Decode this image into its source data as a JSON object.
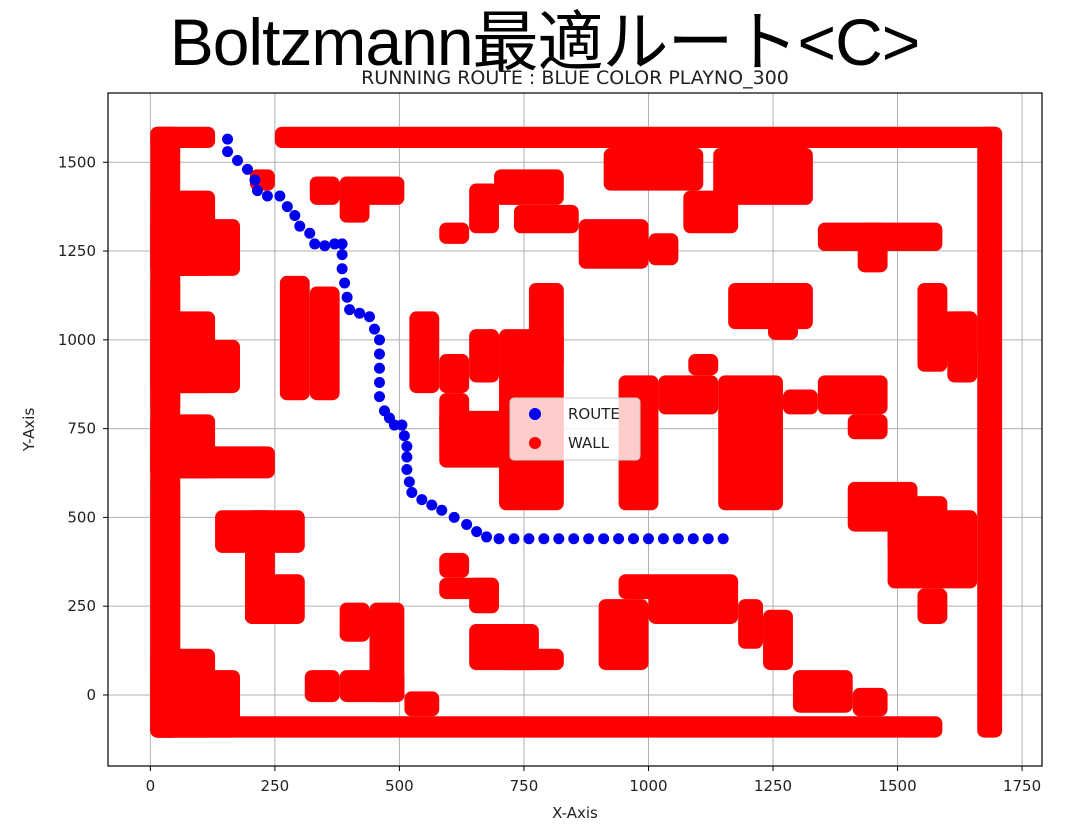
{
  "slide": {
    "title": "Boltzmann最適ルート<C>"
  },
  "chart_data": {
    "type": "scatter",
    "title": "RUNNING ROUTE : BLUE COLOR PLAYNO_300",
    "xlabel": "X-Axis",
    "ylabel": "Y-Axis",
    "xlim": [
      -85,
      1790
    ],
    "ylim": [
      -200,
      1695
    ],
    "xticks": [
      0,
      250,
      500,
      750,
      1000,
      1250,
      1500,
      1750
    ],
    "yticks": [
      0,
      250,
      500,
      750,
      1000,
      1250,
      1500
    ],
    "grid": true,
    "legend": {
      "placement": "center",
      "entries": [
        "ROUTE",
        "WALL"
      ]
    },
    "colors": {
      "route": "#0000ee",
      "wall": "#ff0000"
    },
    "cell_size": 60,
    "series": [
      {
        "name": "WALL",
        "color": "#ff0000",
        "rects": [
          [
            0,
            -120,
            60,
            1600
          ],
          [
            0,
            1540,
            130,
            1600
          ],
          [
            250,
            1540,
            1710,
            1600
          ],
          [
            1660,
            -120,
            1710,
            1600
          ],
          [
            0,
            -120,
            1590,
            -60
          ],
          [
            0,
            1180,
            130,
            1420
          ],
          [
            0,
            1180,
            180,
            1340
          ],
          [
            0,
            790,
            60,
            1180
          ],
          [
            0,
            850,
            130,
            1080
          ],
          [
            0,
            850,
            180,
            1000
          ],
          [
            0,
            610,
            60,
            790
          ],
          [
            0,
            610,
            130,
            790
          ],
          [
            0,
            610,
            250,
            700
          ],
          [
            0,
            -120,
            60,
            610
          ],
          [
            0,
            -120,
            130,
            130
          ],
          [
            0,
            -120,
            180,
            70
          ],
          [
            130,
            400,
            310,
            520
          ],
          [
            190,
            200,
            250,
            520
          ],
          [
            190,
            200,
            310,
            340
          ],
          [
            260,
            830,
            320,
            1180
          ],
          [
            320,
            830,
            380,
            1150
          ],
          [
            320,
            1380,
            380,
            1460
          ],
          [
            380,
            1380,
            510,
            1460
          ],
          [
            380,
            1330,
            440,
            1460
          ],
          [
            200,
            1420,
            250,
            1480
          ],
          [
            580,
            1270,
            640,
            1330
          ],
          [
            640,
            1300,
            700,
            1440
          ],
          [
            690,
            1380,
            830,
            1480
          ],
          [
            730,
            1300,
            860,
            1380
          ],
          [
            860,
            1200,
            1000,
            1340
          ],
          [
            1000,
            1210,
            1060,
            1300
          ],
          [
            1070,
            1300,
            1180,
            1420
          ],
          [
            1130,
            1380,
            1330,
            1540
          ],
          [
            910,
            1420,
            1110,
            1540
          ],
          [
            1160,
            1030,
            1330,
            1160
          ],
          [
            1240,
            1000,
            1300,
            1160
          ],
          [
            1420,
            1190,
            1480,
            1330
          ],
          [
            1340,
            1250,
            1590,
            1330
          ],
          [
            1540,
            910,
            1600,
            1160
          ],
          [
            1540,
            940,
            1660,
            1080
          ],
          [
            1600,
            880,
            1660,
            1080
          ],
          [
            520,
            850,
            580,
            1080
          ],
          [
            580,
            850,
            640,
            960
          ],
          [
            580,
            730,
            640,
            850
          ],
          [
            580,
            640,
            760,
            800
          ],
          [
            700,
            520,
            830,
            1030
          ],
          [
            760,
            920,
            830,
            1160
          ],
          [
            640,
            880,
            700,
            1030
          ],
          [
            940,
            520,
            1020,
            900
          ],
          [
            1020,
            790,
            1140,
            900
          ],
          [
            1080,
            900,
            1140,
            960
          ],
          [
            1140,
            520,
            1270,
            900
          ],
          [
            1340,
            790,
            1480,
            900
          ],
          [
            1270,
            790,
            1340,
            860
          ],
          [
            1400,
            720,
            1480,
            790
          ],
          [
            1400,
            460,
            1540,
            600
          ],
          [
            1480,
            400,
            1600,
            560
          ],
          [
            1480,
            300,
            1660,
            520
          ],
          [
            1540,
            200,
            1600,
            300
          ],
          [
            580,
            330,
            640,
            400
          ],
          [
            640,
            230,
            700,
            330
          ],
          [
            580,
            270,
            700,
            330
          ],
          [
            640,
            70,
            780,
            200
          ],
          [
            700,
            70,
            830,
            130
          ],
          [
            900,
            70,
            1000,
            270
          ],
          [
            940,
            270,
            1180,
            340
          ],
          [
            1000,
            200,
            1180,
            300
          ],
          [
            1180,
            130,
            1230,
            270
          ],
          [
            1230,
            70,
            1290,
            240
          ],
          [
            1290,
            -50,
            1410,
            70
          ],
          [
            1410,
            -60,
            1480,
            20
          ],
          [
            380,
            -20,
            510,
            70
          ],
          [
            450,
            -20,
            510,
            -60
          ],
          [
            310,
            -20,
            380,
            70
          ],
          [
            440,
            -20,
            510,
            260
          ],
          [
            380,
            150,
            440,
            260
          ],
          [
            510,
            -60,
            580,
            10
          ],
          [
            440,
            -20,
            580,
            -60
          ]
        ]
      },
      {
        "name": "ROUTE",
        "color": "#0000ee",
        "points": [
          [
            155,
            1565
          ],
          [
            155,
            1530
          ],
          [
            175,
            1505
          ],
          [
            195,
            1480
          ],
          [
            210,
            1450
          ],
          [
            215,
            1420
          ],
          [
            235,
            1405
          ],
          [
            260,
            1405
          ],
          [
            275,
            1375
          ],
          [
            290,
            1350
          ],
          [
            300,
            1320
          ],
          [
            320,
            1300
          ],
          [
            330,
            1270
          ],
          [
            350,
            1265
          ],
          [
            370,
            1270
          ],
          [
            385,
            1270
          ],
          [
            385,
            1240
          ],
          [
            385,
            1200
          ],
          [
            390,
            1160
          ],
          [
            395,
            1120
          ],
          [
            400,
            1085
          ],
          [
            420,
            1075
          ],
          [
            440,
            1065
          ],
          [
            450,
            1030
          ],
          [
            460,
            1000
          ],
          [
            460,
            960
          ],
          [
            460,
            920
          ],
          [
            460,
            880
          ],
          [
            460,
            840
          ],
          [
            470,
            800
          ],
          [
            480,
            780
          ],
          [
            490,
            760
          ],
          [
            505,
            760
          ],
          [
            510,
            730
          ],
          [
            515,
            700
          ],
          [
            515,
            670
          ],
          [
            515,
            635
          ],
          [
            520,
            600
          ],
          [
            525,
            570
          ],
          [
            545,
            550
          ],
          [
            565,
            535
          ],
          [
            585,
            520
          ],
          [
            610,
            500
          ],
          [
            635,
            480
          ],
          [
            655,
            460
          ],
          [
            675,
            445
          ],
          [
            700,
            440
          ],
          [
            730,
            440
          ],
          [
            760,
            440
          ],
          [
            790,
            440
          ],
          [
            820,
            440
          ],
          [
            850,
            440
          ],
          [
            880,
            440
          ],
          [
            910,
            440
          ],
          [
            940,
            440
          ],
          [
            970,
            440
          ],
          [
            1000,
            440
          ],
          [
            1030,
            440
          ],
          [
            1060,
            440
          ],
          [
            1090,
            440
          ],
          [
            1120,
            440
          ],
          [
            1150,
            440
          ]
        ]
      }
    ]
  }
}
